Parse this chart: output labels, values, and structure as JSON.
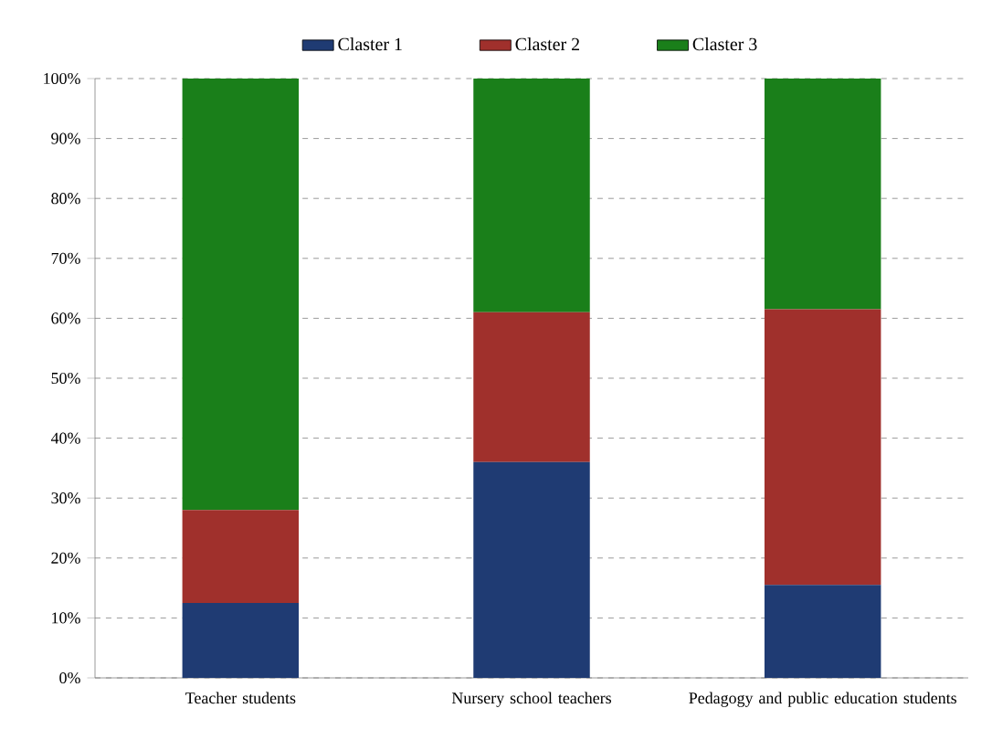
{
  "chart_data": {
    "type": "bar",
    "stacked": true,
    "categories": [
      "Teacher students",
      "Nursery school teachers",
      "Pedagogy and public education students"
    ],
    "series": [
      {
        "name": "Claster 1",
        "color": "#1f3b73",
        "values": [
          12.5,
          36,
          15.5
        ]
      },
      {
        "name": "Claster 2",
        "color": "#a0302c",
        "values": [
          15.5,
          25,
          46
        ]
      },
      {
        "name": "Claster 3",
        "color": "#1a7f1a",
        "values": [
          72,
          39,
          38.5
        ]
      }
    ],
    "ylim": [
      0,
      100
    ],
    "yticks": [
      {
        "value": 0,
        "label": "0%"
      },
      {
        "value": 10,
        "label": "10%"
      },
      {
        "value": 20,
        "label": "20%"
      },
      {
        "value": 30,
        "label": "30%"
      },
      {
        "value": 40,
        "label": "40%"
      },
      {
        "value": 50,
        "label": "50%"
      },
      {
        "value": 60,
        "label": "60%"
      },
      {
        "value": 70,
        "label": "70%"
      },
      {
        "value": 80,
        "label": "80%"
      },
      {
        "value": 90,
        "label": "90%"
      },
      {
        "value": 100,
        "label": "100%"
      }
    ],
    "grid": "y",
    "legend": "top"
  }
}
